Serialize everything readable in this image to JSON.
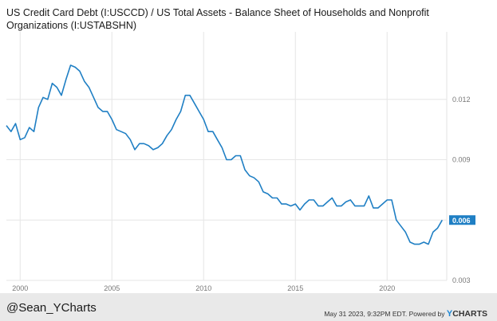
{
  "chart_data": {
    "type": "line",
    "title": "US Credit Card Debt (I:USCCD) / US Total Assets - Balance Sheet of Households and Nonprofit Organizations (I:USTABSHN)",
    "xlabel": "",
    "ylabel": "",
    "x_ticks": [
      "2000",
      "2005",
      "2010",
      "2015",
      "2020"
    ],
    "y_ticks": [
      "0.003",
      "0.006",
      "0.009",
      "0.012"
    ],
    "ylim": [
      0.003,
      0.0152
    ],
    "xlim": [
      1999.25,
      2023.25
    ],
    "grid": true,
    "line_color": "#1f7fc4",
    "last_value_label": "0.006",
    "series": [
      {
        "values": [
          [
            1999.25,
            0.0107
          ],
          [
            1999.5,
            0.0104
          ],
          [
            1999.75,
            0.0108
          ],
          [
            2000.0,
            0.01
          ],
          [
            2000.25,
            0.0101
          ],
          [
            2000.5,
            0.0106
          ],
          [
            2000.75,
            0.0104
          ],
          [
            2001.0,
            0.0116
          ],
          [
            2001.25,
            0.0121
          ],
          [
            2001.5,
            0.012
          ],
          [
            2001.75,
            0.0128
          ],
          [
            2002.0,
            0.0126
          ],
          [
            2002.25,
            0.0122
          ],
          [
            2002.5,
            0.013
          ],
          [
            2002.75,
            0.0137
          ],
          [
            2003.0,
            0.0136
          ],
          [
            2003.25,
            0.0134
          ],
          [
            2003.5,
            0.0129
          ],
          [
            2003.75,
            0.0126
          ],
          [
            2004.0,
            0.0121
          ],
          [
            2004.25,
            0.0116
          ],
          [
            2004.5,
            0.0114
          ],
          [
            2004.75,
            0.0114
          ],
          [
            2005.0,
            0.011
          ],
          [
            2005.25,
            0.0105
          ],
          [
            2005.5,
            0.0104
          ],
          [
            2005.75,
            0.0103
          ],
          [
            2006.0,
            0.01
          ],
          [
            2006.25,
            0.0095
          ],
          [
            2006.5,
            0.0098
          ],
          [
            2006.75,
            0.0098
          ],
          [
            2007.0,
            0.0097
          ],
          [
            2007.25,
            0.0095
          ],
          [
            2007.5,
            0.0096
          ],
          [
            2007.75,
            0.0098
          ],
          [
            2008.0,
            0.0102
          ],
          [
            2008.25,
            0.0105
          ],
          [
            2008.5,
            0.011
          ],
          [
            2008.75,
            0.0114
          ],
          [
            2009.0,
            0.0122
          ],
          [
            2009.25,
            0.0122
          ],
          [
            2009.5,
            0.0118
          ],
          [
            2009.75,
            0.0114
          ],
          [
            2010.0,
            0.011
          ],
          [
            2010.25,
            0.0104
          ],
          [
            2010.5,
            0.0104
          ],
          [
            2010.75,
            0.01
          ],
          [
            2011.0,
            0.0096
          ],
          [
            2011.25,
            0.009
          ],
          [
            2011.5,
            0.009
          ],
          [
            2011.75,
            0.0092
          ],
          [
            2012.0,
            0.0092
          ],
          [
            2012.25,
            0.0085
          ],
          [
            2012.5,
            0.0082
          ],
          [
            2012.75,
            0.0081
          ],
          [
            2013.0,
            0.0079
          ],
          [
            2013.25,
            0.0074
          ],
          [
            2013.5,
            0.0073
          ],
          [
            2013.75,
            0.0071
          ],
          [
            2014.0,
            0.0071
          ],
          [
            2014.25,
            0.0068
          ],
          [
            2014.5,
            0.0068
          ],
          [
            2014.75,
            0.0067
          ],
          [
            2015.0,
            0.0068
          ],
          [
            2015.25,
            0.0065
          ],
          [
            2015.5,
            0.0068
          ],
          [
            2015.75,
            0.007
          ],
          [
            2016.0,
            0.007
          ],
          [
            2016.25,
            0.0067
          ],
          [
            2016.5,
            0.0067
          ],
          [
            2016.75,
            0.0069
          ],
          [
            2017.0,
            0.0071
          ],
          [
            2017.25,
            0.0067
          ],
          [
            2017.5,
            0.0067
          ],
          [
            2017.75,
            0.0069
          ],
          [
            2018.0,
            0.007
          ],
          [
            2018.25,
            0.0067
          ],
          [
            2018.5,
            0.0067
          ],
          [
            2018.75,
            0.0067
          ],
          [
            2019.0,
            0.0072
          ],
          [
            2019.25,
            0.0066
          ],
          [
            2019.5,
            0.0066
          ],
          [
            2019.75,
            0.0068
          ],
          [
            2020.0,
            0.007
          ],
          [
            2020.25,
            0.007
          ],
          [
            2020.5,
            0.006
          ],
          [
            2020.75,
            0.0057
          ],
          [
            2021.0,
            0.0054
          ],
          [
            2021.25,
            0.0049
          ],
          [
            2021.5,
            0.0048
          ],
          [
            2021.75,
            0.0048
          ],
          [
            2022.0,
            0.0049
          ],
          [
            2022.25,
            0.0048
          ],
          [
            2022.5,
            0.0054
          ],
          [
            2022.75,
            0.0056
          ],
          [
            2023.0,
            0.006
          ]
        ]
      }
    ]
  },
  "footer": {
    "handle": "@Sean_YCharts",
    "timestamp": "May 31 2023, 9:32PM EDT.  Powered by",
    "brand_y": "Y",
    "brand_rest": "CHARTS"
  }
}
